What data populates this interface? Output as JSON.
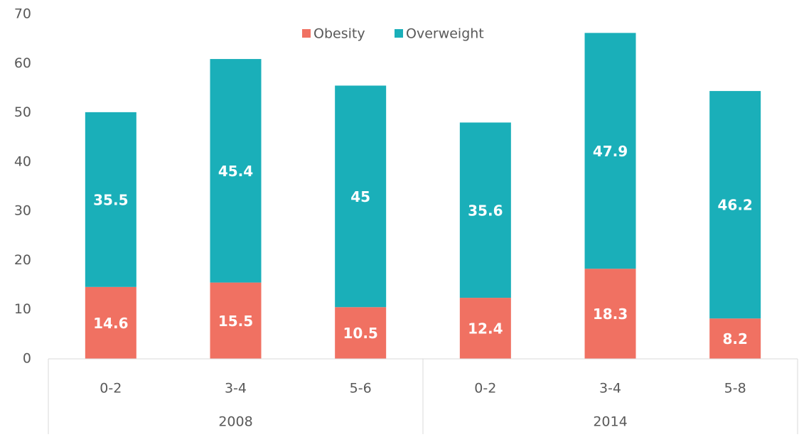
{
  "chart_data": {
    "type": "stacked_bar",
    "groups": [
      {
        "name": "2008",
        "categories": [
          "0-2",
          "3-4",
          "5-6"
        ]
      },
      {
        "name": "2014",
        "categories": [
          "0-2",
          "3-4",
          "5-8"
        ]
      }
    ],
    "series": [
      {
        "name": "Obesity",
        "color": "#f07162",
        "values": [
          14.6,
          15.5,
          10.5,
          12.4,
          18.3,
          8.2
        ]
      },
      {
        "name": "Overweight",
        "color": "#1aafb9",
        "values": [
          35.5,
          45.4,
          45,
          35.6,
          47.9,
          46.2
        ]
      }
    ],
    "ylim": [
      0,
      70
    ],
    "yticks": [
      0,
      10,
      20,
      30,
      40,
      50,
      60,
      70
    ],
    "grid": false,
    "legend": "top"
  }
}
